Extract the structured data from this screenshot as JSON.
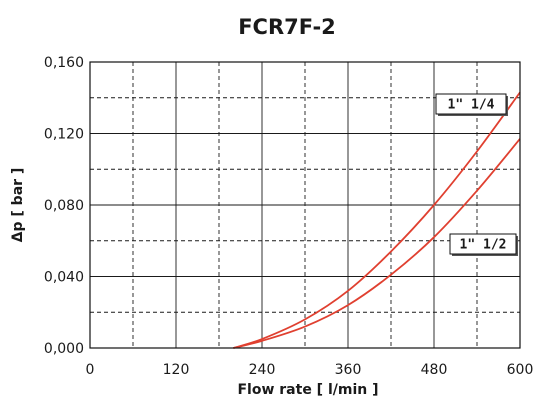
{
  "chart_data": {
    "type": "line",
    "title": "FCR7F-2",
    "xlabel": "Flow rate [ l/min ]",
    "ylabel": "Δp [ bar ]",
    "xlim": [
      0,
      600
    ],
    "ylim": [
      0,
      0.16
    ],
    "x_ticks": [
      0,
      120,
      240,
      360,
      480,
      600
    ],
    "x_tick_labels": [
      "0",
      "120",
      "240",
      "360",
      "480",
      "600"
    ],
    "y_ticks": [
      0,
      0.04,
      0.08,
      0.12,
      0.16
    ],
    "y_tick_labels": [
      "0,000",
      "0,040",
      "0,080",
      "0,120",
      "0,160"
    ],
    "grid": true,
    "line_color": "#e04030",
    "series": [
      {
        "name": "1\" 1/4",
        "x": [
          200,
          240,
          300,
          360,
          420,
          480,
          540,
          600
        ],
        "y": [
          0,
          0.005,
          0.016,
          0.032,
          0.054,
          0.08,
          0.11,
          0.143
        ]
      },
      {
        "name": "1\" 1/2",
        "x": [
          200,
          240,
          300,
          360,
          420,
          480,
          540,
          600
        ],
        "y": [
          0,
          0.004,
          0.012,
          0.024,
          0.041,
          0.062,
          0.088,
          0.117
        ]
      }
    ]
  }
}
